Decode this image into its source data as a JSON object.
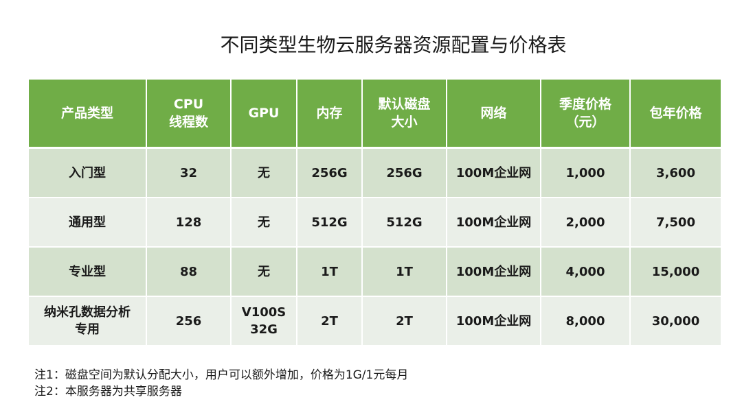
{
  "title": "不同类型生物云服务器资源配置与价格表",
  "colors": {
    "header_bg": "#70ad47",
    "row_odd_bg": "#d4e1cd",
    "row_even_bg": "#eaefe8"
  },
  "table": {
    "headers": [
      "产品类型",
      "CPU\n线程数",
      "GPU",
      "内存",
      "默认磁盘\n大小",
      "网络",
      "季度价格\n（元）",
      "包年价格"
    ],
    "rows": [
      [
        "入门型",
        "32",
        "无",
        "256G",
        "256G",
        "100M企业网",
        "1,000",
        "3,600"
      ],
      [
        "通用型",
        "128",
        "无",
        "512G",
        "512G",
        "100M企业网",
        "2,000",
        "7,500"
      ],
      [
        "专业型",
        "88",
        "无",
        "1T",
        "1T",
        "100M企业网",
        "4,000",
        "15,000"
      ],
      [
        "纳米孔数据分析\n专用",
        "256",
        "V100S\n32G",
        "2T",
        "2T",
        "100M企业网",
        "8,000",
        "30,000"
      ]
    ]
  },
  "notes": [
    "注1：磁盘空间为默认分配大小，用户可以额外增加，价格为1G/1元每月",
    "注2：本服务器为共享服务器"
  ]
}
